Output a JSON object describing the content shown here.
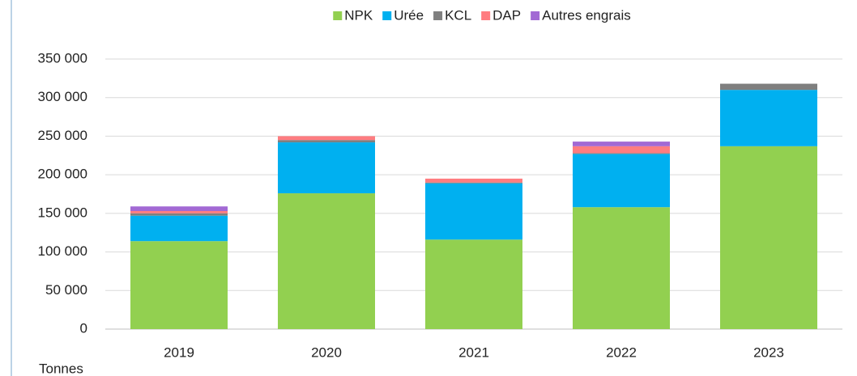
{
  "chart_data": {
    "type": "stacked_bar",
    "y_axis_label": "Tonnes",
    "categories": [
      "2019",
      "2020",
      "2021",
      "2022",
      "2023"
    ],
    "series": [
      {
        "name": "NPK",
        "color": "#92d050",
        "values": [
          114000,
          176000,
          116000,
          158000,
          237000
        ]
      },
      {
        "name": "Urée",
        "color": "#00b0f0",
        "values": [
          33000,
          66000,
          73000,
          69000,
          73000
        ]
      },
      {
        "name": "KCL",
        "color": "#7f7f7f",
        "values": [
          3000,
          3000,
          1000,
          1000,
          8000
        ]
      },
      {
        "name": "DAP",
        "color": "#ff7c80",
        "values": [
          3000,
          5000,
          5000,
          9000,
          0
        ]
      },
      {
        "name": "Autres engrais",
        "color": "#a269d4",
        "values": [
          6000,
          0,
          0,
          6000,
          0
        ]
      }
    ],
    "ylim": [
      0,
      350000
    ],
    "yticks": [
      0,
      {
        "value": 50000,
        "label": "50 000"
      },
      {
        "value": 100000,
        "label": "100 000"
      },
      {
        "value": 150000,
        "label": "150 000"
      },
      {
        "value": 200000,
        "label": "200 000"
      },
      {
        "value": 250000,
        "label": "250 000"
      },
      {
        "value": 300000,
        "label": "300 000"
      },
      {
        "value": 350000,
        "label": "350 000"
      }
    ],
    "grid": true,
    "legend": "top"
  }
}
